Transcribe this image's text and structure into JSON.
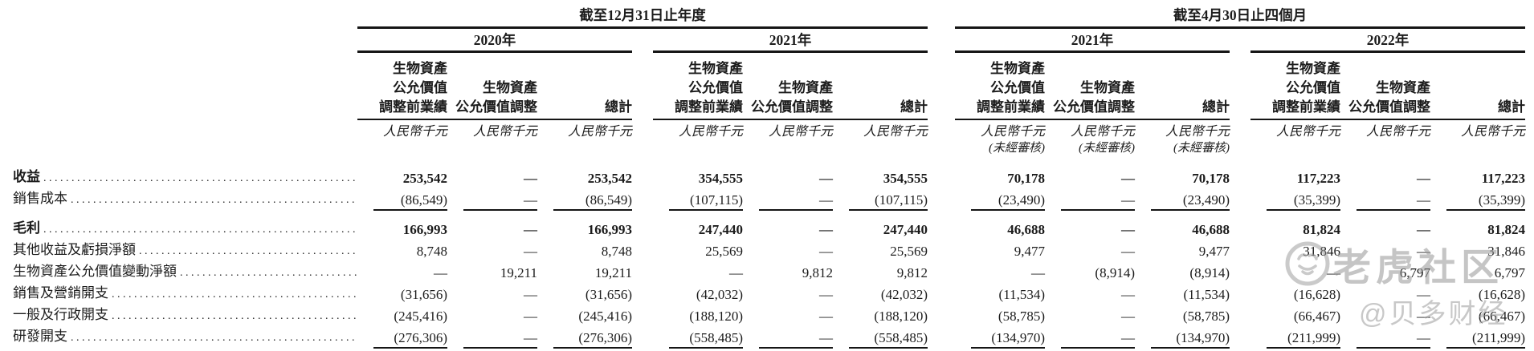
{
  "page": {
    "background": "#ffffff",
    "text_color": "#1c1c1c",
    "rule_color": "#151515"
  },
  "watermark": {
    "brand": "老虎社区",
    "handle": "@贝多财经",
    "logo": "tiger-circle-logo",
    "color": "#bfbfbf"
  },
  "table": {
    "sections": [
      {
        "title": "截至12月31日止年度"
      },
      {
        "title": "截至4月30日止四個月"
      }
    ],
    "groups": [
      {
        "year": "2020年",
        "section": 0,
        "unaudited": false
      },
      {
        "year": "2021年",
        "section": 0,
        "unaudited": false
      },
      {
        "year": "2021年",
        "section": 1,
        "unaudited": true
      },
      {
        "year": "2022年",
        "section": 1,
        "unaudited": false
      }
    ],
    "col_headers": [
      "生物資產\n公允價值\n調整前業績",
      "生物資產\n公允價值調整",
      "總計"
    ],
    "currency_label": "人民幣千元",
    "unaudited_label": "(未經審核)",
    "rows": [
      {
        "label": "收益",
        "bold": true,
        "rule_below": false,
        "gap_above": false,
        "values": [
          "253,542",
          "—",
          "253,542",
          "354,555",
          "—",
          "354,555",
          "70,178",
          "—",
          "70,178",
          "117,223",
          "—",
          "117,223"
        ]
      },
      {
        "label": "銷售成本",
        "bold": false,
        "rule_below": true,
        "gap_above": false,
        "values": [
          "(86,549)",
          "—",
          "(86,549)",
          "(107,115)",
          "—",
          "(107,115)",
          "(23,490)",
          "—",
          "(23,490)",
          "(35,399)",
          "—",
          "(35,399)"
        ]
      },
      {
        "label": "毛利",
        "bold": true,
        "rule_below": false,
        "gap_above": true,
        "values": [
          "166,993",
          "—",
          "166,993",
          "247,440",
          "—",
          "247,440",
          "46,688",
          "—",
          "46,688",
          "81,824",
          "—",
          "81,824"
        ]
      },
      {
        "label": "其他收益及虧損淨額",
        "bold": false,
        "rule_below": false,
        "gap_above": false,
        "values": [
          "8,748",
          "—",
          "8,748",
          "25,569",
          "—",
          "25,569",
          "9,477",
          "—",
          "9,477",
          "31,846",
          "—",
          "31,846"
        ]
      },
      {
        "label": "生物資產公允價值變動淨額",
        "bold": false,
        "rule_below": false,
        "gap_above": false,
        "values": [
          "—",
          "19,211",
          "19,211",
          "—",
          "9,812",
          "9,812",
          "—",
          "(8,914)",
          "(8,914)",
          "—",
          "6,797",
          "6,797"
        ]
      },
      {
        "label": "銷售及營銷開支",
        "bold": false,
        "rule_below": false,
        "gap_above": false,
        "values": [
          "(31,656)",
          "—",
          "(31,656)",
          "(42,032)",
          "—",
          "(42,032)",
          "(11,534)",
          "—",
          "(11,534)",
          "(16,628)",
          "—",
          "(16,628)"
        ]
      },
      {
        "label": "一般及行政開支",
        "bold": false,
        "rule_below": false,
        "gap_above": false,
        "values": [
          "(245,416)",
          "—",
          "(245,416)",
          "(188,120)",
          "—",
          "(188,120)",
          "(58,785)",
          "—",
          "(58,785)",
          "(66,467)",
          "—",
          "(66,467)"
        ]
      },
      {
        "label": "研發開支",
        "bold": false,
        "rule_below": true,
        "gap_above": false,
        "values": [
          "(276,306)",
          "—",
          "(276,306)",
          "(558,485)",
          "—",
          "(558,485)",
          "(134,970)",
          "—",
          "(134,970)",
          "(211,999)",
          "—",
          "(211,999)"
        ]
      }
    ]
  }
}
